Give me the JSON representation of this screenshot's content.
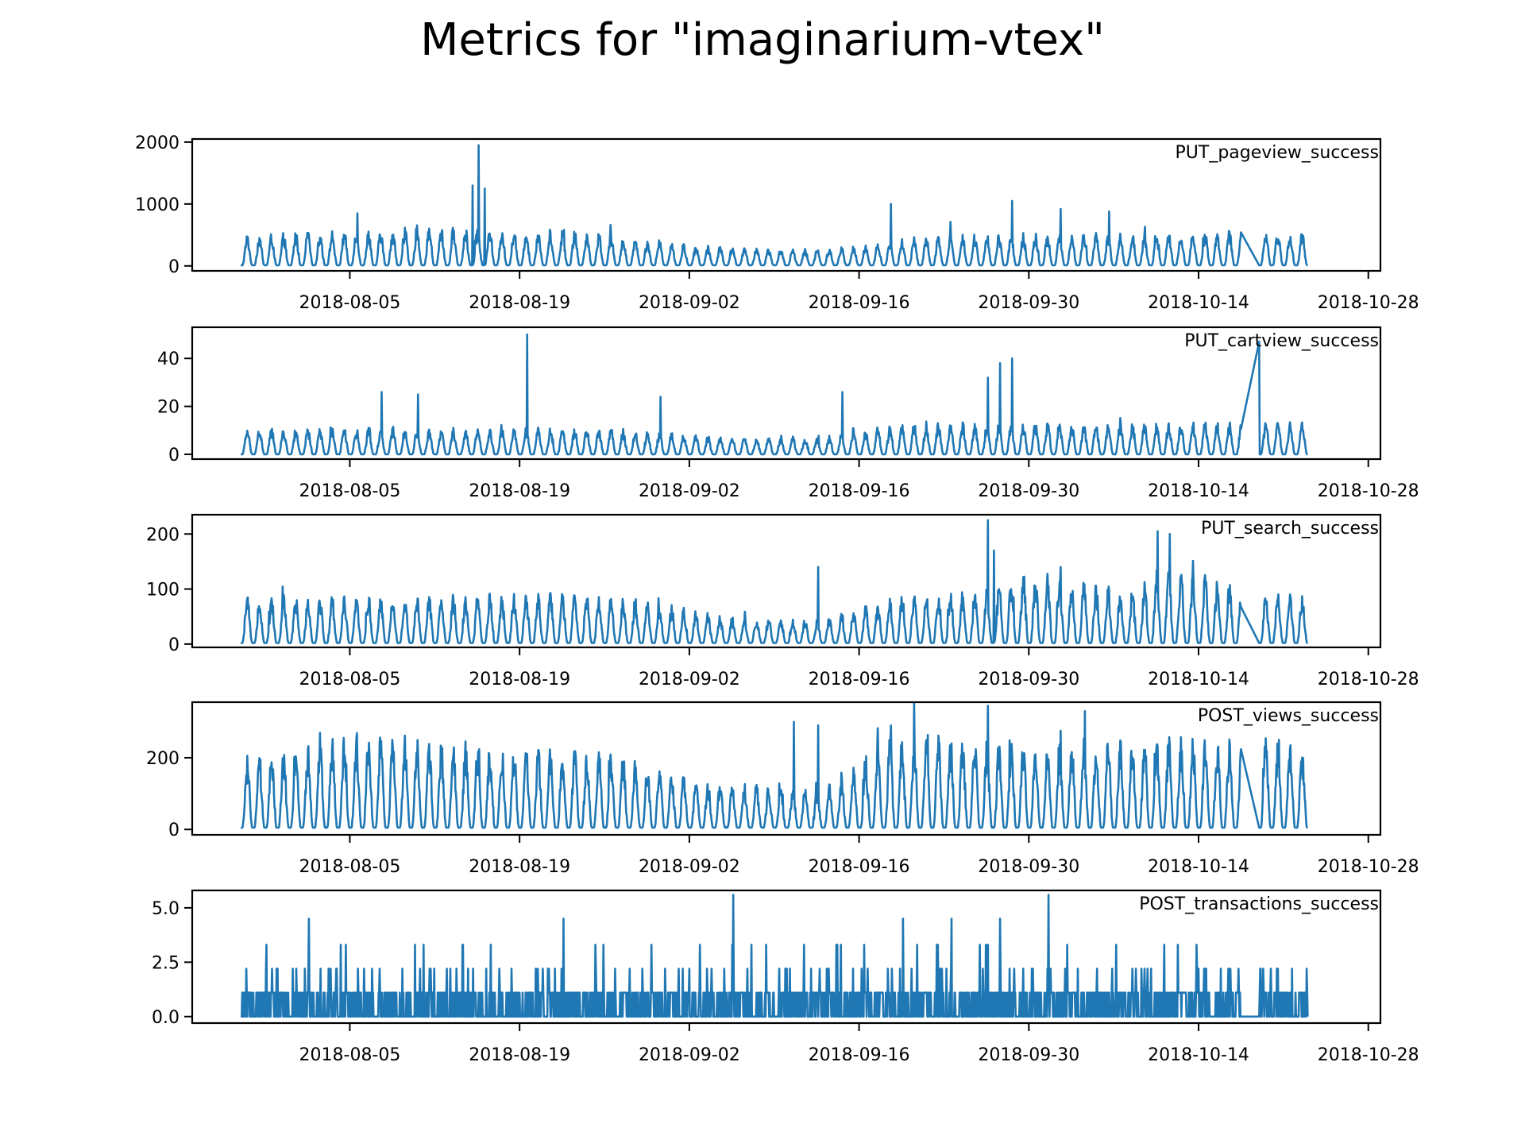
{
  "figure": {
    "title": "Metrics for \"imaginarium-vtex\""
  },
  "colors": {
    "line": "#1f77b4",
    "axis": "#000000",
    "background": "#ffffff"
  },
  "chart_data": [
    {
      "type": "line",
      "series_label": "PUT_pageview_success",
      "x_range": [
        "2018-07-23",
        "2018-10-29"
      ],
      "x_ticks": [
        "2018-08-05",
        "2018-08-19",
        "2018-09-02",
        "2018-09-16",
        "2018-09-30",
        "2018-10-14",
        "2018-10-28"
      ],
      "ylim": [
        -80,
        2050
      ],
      "y_ticks": [
        0,
        1000,
        2000
      ],
      "y_tick_labels": [
        "0",
        "1000",
        "2000"
      ],
      "data_start": "2018-07-27",
      "data_end": "2018-10-23",
      "gap": [
        "2018-10-17T12:00",
        "2018-10-19T00:00"
      ],
      "base": 10,
      "amp_profile": [
        [
          0,
          400
        ],
        [
          15,
          520
        ],
        [
          28,
          470
        ],
        [
          38,
          260
        ],
        [
          48,
          220
        ],
        [
          58,
          420
        ],
        [
          75,
          430
        ],
        [
          86,
          480
        ],
        [
          88,
          450
        ]
      ],
      "spikes": [
        {
          "date": "2018-08-05",
          "value": 850
        },
        {
          "date": "2018-08-14T12:00",
          "value": 1300
        },
        {
          "date": "2018-08-15",
          "value": 1950
        },
        {
          "date": "2018-08-15T12:00",
          "value": 1250
        },
        {
          "date": "2018-09-18",
          "value": 1000
        },
        {
          "date": "2018-09-28",
          "value": 1050
        },
        {
          "date": "2018-10-02",
          "value": 920
        },
        {
          "date": "2018-10-06",
          "value": 880
        }
      ]
    },
    {
      "type": "line",
      "series_label": "PUT_cartview_success",
      "x_range": [
        "2018-07-23",
        "2018-10-29"
      ],
      "x_ticks": [
        "2018-08-05",
        "2018-08-19",
        "2018-09-02",
        "2018-09-16",
        "2018-09-30",
        "2018-10-14",
        "2018-10-28"
      ],
      "ylim": [
        -2,
        53
      ],
      "y_ticks": [
        0,
        20,
        40
      ],
      "y_tick_labels": [
        "0",
        "20",
        "40"
      ],
      "data_start": "2018-07-27",
      "data_end": "2018-10-23",
      "gap": [
        "2018-10-17T12:00",
        "2018-10-19T00:00"
      ],
      "base": 0,
      "amp_profile": [
        [
          0,
          9
        ],
        [
          30,
          9
        ],
        [
          40,
          6
        ],
        [
          48,
          6
        ],
        [
          55,
          11
        ],
        [
          88,
          11
        ]
      ],
      "spikes": [
        {
          "date": "2018-08-19",
          "value": 50
        },
        {
          "date": "2018-09-26",
          "value": 32
        },
        {
          "date": "2018-09-27",
          "value": 38
        },
        {
          "date": "2018-09-28",
          "value": 40
        },
        {
          "date": "2018-10-18",
          "value": 47
        },
        {
          "date": "2018-08-07",
          "value": 26
        },
        {
          "date": "2018-08-10",
          "value": 25
        },
        {
          "date": "2018-08-30",
          "value": 24
        },
        {
          "date": "2018-09-14",
          "value": 26
        }
      ]
    },
    {
      "type": "line",
      "series_label": "PUT_search_success",
      "x_range": [
        "2018-07-23",
        "2018-10-29"
      ],
      "x_ticks": [
        "2018-08-05",
        "2018-08-19",
        "2018-09-02",
        "2018-09-16",
        "2018-09-30",
        "2018-10-14",
        "2018-10-28"
      ],
      "ylim": [
        -6,
        235
      ],
      "y_ticks": [
        0,
        100,
        200
      ],
      "y_tick_labels": [
        "0",
        "100",
        "200"
      ],
      "data_start": "2018-07-27",
      "data_end": "2018-10-23",
      "gap": [
        "2018-10-17T12:00",
        "2018-10-19T00:00"
      ],
      "base": 2,
      "amp_profile": [
        [
          0,
          70
        ],
        [
          30,
          75
        ],
        [
          40,
          40
        ],
        [
          48,
          35
        ],
        [
          55,
          75
        ],
        [
          62,
          80
        ],
        [
          64,
          110
        ],
        [
          70,
          90
        ],
        [
          74,
          80
        ],
        [
          76,
          120
        ],
        [
          80,
          100
        ],
        [
          84,
          75
        ],
        [
          88,
          75
        ]
      ],
      "spikes": [
        {
          "date": "2018-09-26",
          "value": 225
        },
        {
          "date": "2018-09-26T12:00",
          "value": 170
        },
        {
          "date": "2018-10-10",
          "value": 205
        },
        {
          "date": "2018-10-11",
          "value": 200
        },
        {
          "date": "2018-10-02",
          "value": 140
        },
        {
          "date": "2018-09-12",
          "value": 140
        }
      ]
    },
    {
      "type": "line",
      "series_label": "POST_views_success",
      "x_range": [
        "2018-07-23",
        "2018-10-29"
      ],
      "x_ticks": [
        "2018-08-05",
        "2018-08-19",
        "2018-09-02",
        "2018-09-16",
        "2018-09-30",
        "2018-10-14",
        "2018-10-28"
      ],
      "ylim": [
        -15,
        355
      ],
      "y_ticks": [
        0,
        200
      ],
      "y_tick_labels": [
        "0",
        "200"
      ],
      "data_start": "2018-07-27",
      "data_end": "2018-10-23",
      "gap": [
        "2018-10-17T12:00",
        "2018-10-19T00:00"
      ],
      "base": 5,
      "amp_profile": [
        [
          0,
          160
        ],
        [
          10,
          220
        ],
        [
          20,
          190
        ],
        [
          30,
          180
        ],
        [
          38,
          110
        ],
        [
          48,
          90
        ],
        [
          54,
          220
        ],
        [
          65,
          200
        ],
        [
          75,
          210
        ],
        [
          86,
          200
        ],
        [
          88,
          180
        ]
      ],
      "spikes": [
        {
          "date": "2018-09-10",
          "value": 300
        },
        {
          "date": "2018-09-12",
          "value": 290
        },
        {
          "date": "2018-09-18",
          "value": 290
        },
        {
          "date": "2018-09-26",
          "value": 345
        },
        {
          "date": "2018-10-04",
          "value": 330
        },
        {
          "date": "2018-10-02",
          "value": 275
        },
        {
          "date": "2018-10-20",
          "value": 250
        }
      ]
    },
    {
      "type": "line",
      "series_label": "POST_transactions_success",
      "x_range": [
        "2018-07-23",
        "2018-10-29"
      ],
      "x_ticks": [
        "2018-08-05",
        "2018-08-19",
        "2018-09-02",
        "2018-09-16",
        "2018-09-30",
        "2018-10-14",
        "2018-10-28"
      ],
      "ylim": [
        -0.3,
        5.8
      ],
      "y_ticks": [
        0,
        2.5,
        5
      ],
      "y_tick_labels": [
        "0.0",
        "2.5",
        "5.0"
      ],
      "data_start": "2018-07-27",
      "data_end": "2018-10-23",
      "gap": [
        "2018-10-17T12:00",
        "2018-10-19T00:00"
      ],
      "discrete_levels": [
        0,
        1.1,
        2.2,
        3.3,
        4.5,
        5.6
      ],
      "spikes": [
        {
          "date": "2018-08-01",
          "value": 4.5
        },
        {
          "date": "2018-08-22",
          "value": 4.5
        },
        {
          "date": "2018-09-05",
          "value": 5.6
        },
        {
          "date": "2018-10-01",
          "value": 5.6
        },
        {
          "date": "2018-09-27",
          "value": 4.5
        },
        {
          "date": "2018-09-23",
          "value": 4.5
        },
        {
          "date": "2018-09-19",
          "value": 4.5
        }
      ]
    }
  ]
}
